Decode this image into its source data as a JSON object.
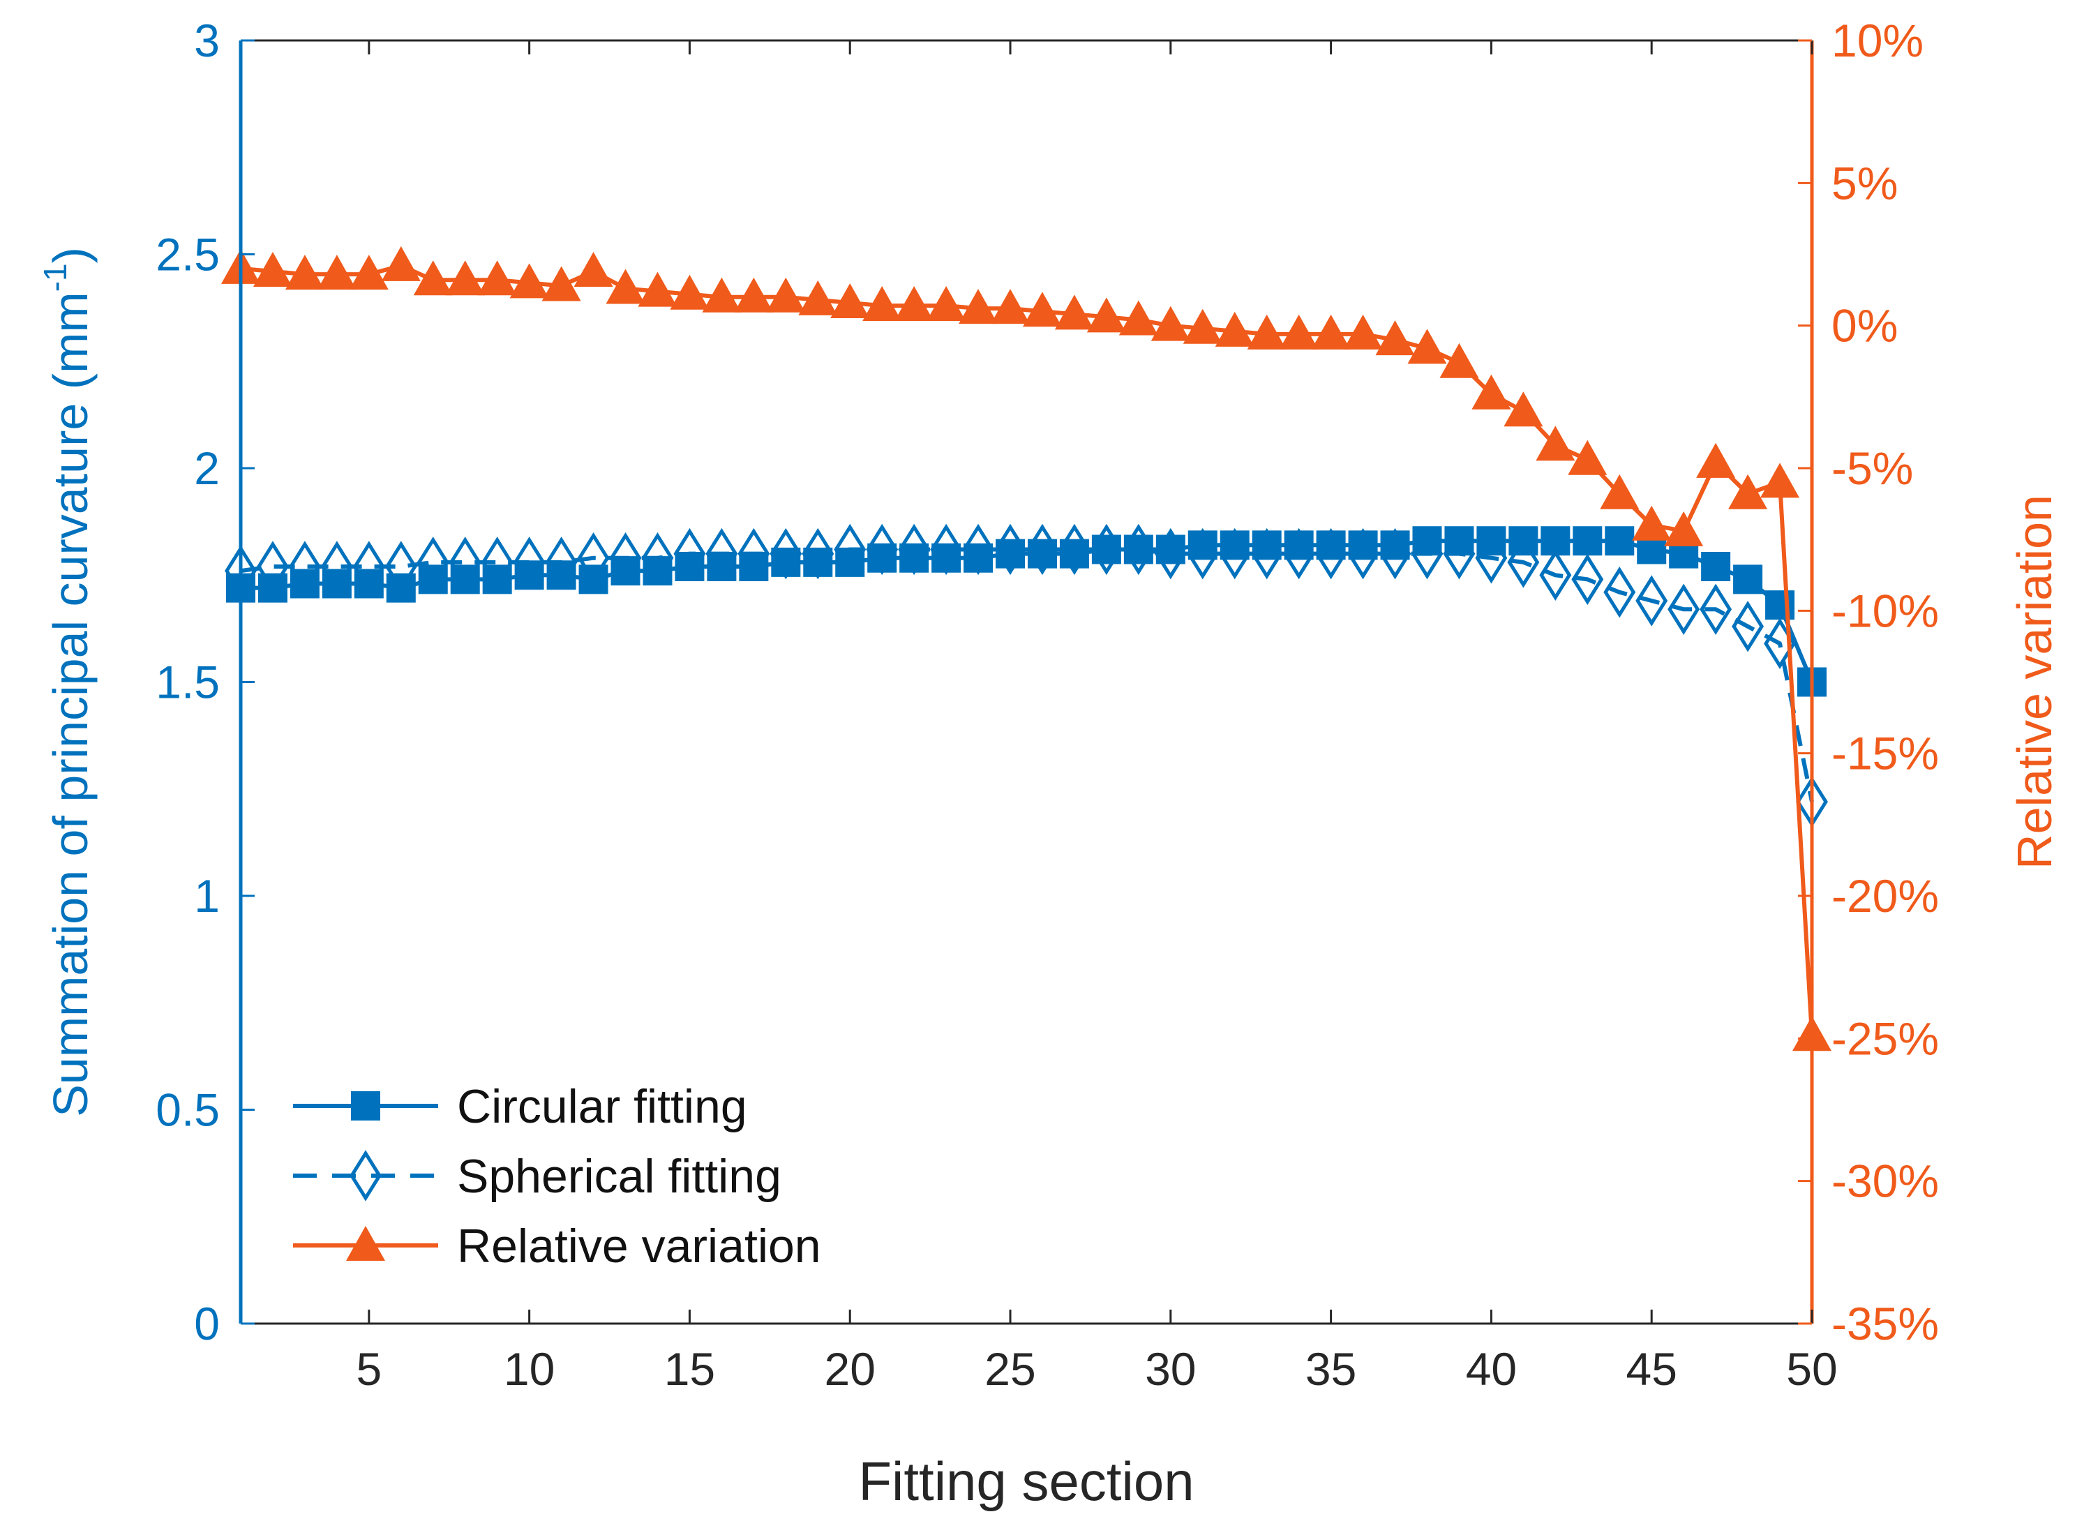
{
  "chart_data": {
    "type": "line",
    "title": "",
    "xlabel": "Fitting section",
    "ylabel_left": "Summation of principal curvature (mm",
    "ylabel_left_sup": "-1",
    "ylabel_left_close": ")",
    "ylabel_right": "Relative variation",
    "xlim": [
      1,
      50
    ],
    "ylim_left": [
      0,
      3
    ],
    "ylim_right": [
      -35,
      10
    ],
    "x_ticks": [
      5,
      10,
      15,
      20,
      25,
      30,
      35,
      40,
      45,
      50
    ],
    "x_tick_labels": [
      "5",
      "10",
      "15",
      "20",
      "25",
      "30",
      "35",
      "40",
      "45",
      "50"
    ],
    "y_left_ticks": [
      0,
      0.5,
      1,
      1.5,
      2,
      2.5,
      3
    ],
    "y_left_tick_labels": [
      "0",
      "0.5",
      "1",
      "1.5",
      "2",
      "2.5",
      "3"
    ],
    "y_right_ticks": [
      -35,
      -30,
      -25,
      -20,
      -15,
      -10,
      -5,
      0,
      5,
      10
    ],
    "y_right_tick_labels": [
      "-35%",
      "-30%",
      "-25%",
      "-20%",
      "-15%",
      "-10%",
      "-5%",
      "0%",
      "5%",
      "10%"
    ],
    "legend_position": "bottom-left",
    "colors": {
      "blue": "#0072BD",
      "orange": "#F05A1A"
    },
    "x": [
      1,
      2,
      3,
      4,
      5,
      6,
      7,
      8,
      9,
      10,
      11,
      12,
      13,
      14,
      15,
      16,
      17,
      18,
      19,
      20,
      21,
      22,
      23,
      24,
      25,
      26,
      27,
      28,
      29,
      30,
      31,
      32,
      33,
      34,
      35,
      36,
      37,
      38,
      39,
      40,
      41,
      42,
      43,
      44,
      45,
      46,
      47,
      48,
      49,
      50
    ],
    "series": [
      {
        "name": "Circular fitting",
        "axis": "left",
        "marker": "square",
        "line": "solid",
        "values": [
          1.72,
          1.72,
          1.73,
          1.73,
          1.73,
          1.72,
          1.74,
          1.74,
          1.74,
          1.75,
          1.75,
          1.74,
          1.76,
          1.76,
          1.77,
          1.77,
          1.77,
          1.78,
          1.78,
          1.78,
          1.79,
          1.79,
          1.79,
          1.79,
          1.8,
          1.8,
          1.8,
          1.81,
          1.81,
          1.81,
          1.82,
          1.82,
          1.82,
          1.82,
          1.82,
          1.82,
          1.82,
          1.83,
          1.83,
          1.83,
          1.83,
          1.83,
          1.83,
          1.83,
          1.81,
          1.8,
          1.77,
          1.74,
          1.68,
          1.5
        ]
      },
      {
        "name": "Spherical fitting",
        "axis": "left",
        "marker": "diamond-open",
        "line": "dashed",
        "values": [
          1.76,
          1.77,
          1.77,
          1.77,
          1.77,
          1.77,
          1.78,
          1.78,
          1.78,
          1.78,
          1.78,
          1.79,
          1.79,
          1.79,
          1.8,
          1.8,
          1.8,
          1.8,
          1.8,
          1.81,
          1.81,
          1.81,
          1.81,
          1.81,
          1.81,
          1.81,
          1.81,
          1.81,
          1.81,
          1.8,
          1.8,
          1.8,
          1.8,
          1.8,
          1.8,
          1.8,
          1.8,
          1.8,
          1.8,
          1.79,
          1.78,
          1.75,
          1.74,
          1.71,
          1.69,
          1.67,
          1.67,
          1.63,
          1.59,
          1.22
        ]
      },
      {
        "name": "Relative variation",
        "axis": "right",
        "marker": "triangle",
        "line": "solid",
        "values": [
          2.0,
          1.9,
          1.8,
          1.8,
          1.8,
          2.1,
          1.6,
          1.6,
          1.6,
          1.5,
          1.4,
          1.9,
          1.3,
          1.2,
          1.1,
          1.0,
          1.0,
          1.0,
          0.9,
          0.8,
          0.7,
          0.7,
          0.7,
          0.6,
          0.6,
          0.5,
          0.4,
          0.3,
          0.2,
          0.0,
          -0.1,
          -0.2,
          -0.3,
          -0.3,
          -0.3,
          -0.3,
          -0.5,
          -0.8,
          -1.3,
          -2.4,
          -3.0,
          -4.2,
          -4.7,
          -5.9,
          -7.0,
          -7.2,
          -4.8,
          -5.9,
          -5.5,
          -24.9
        ]
      }
    ]
  }
}
